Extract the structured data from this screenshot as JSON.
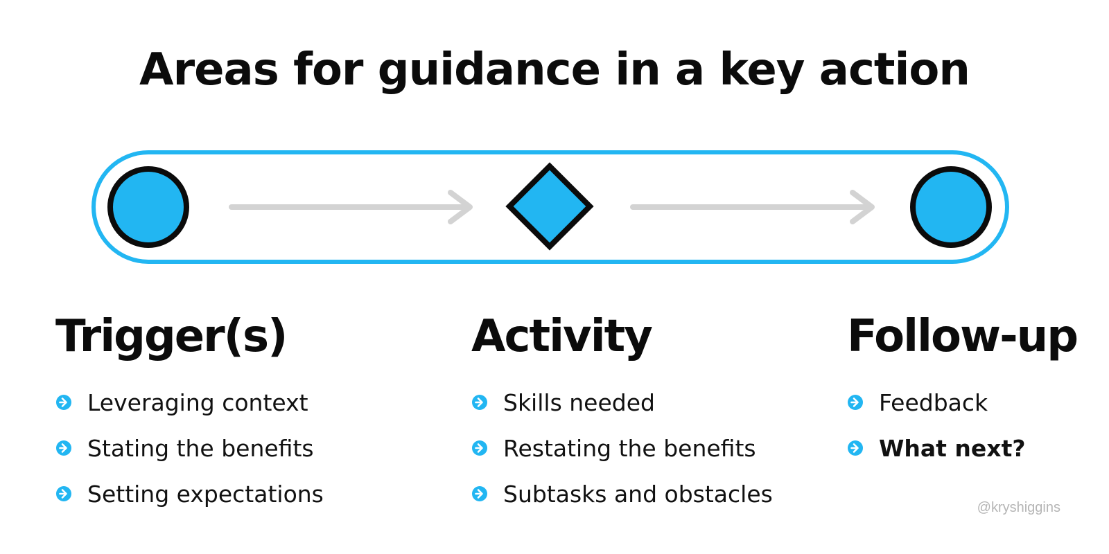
{
  "title": "Areas for guidance in a key action",
  "colors": {
    "accent": "#22b6f2",
    "outline": "#0b0b0b",
    "arrow": "#d3d3d3",
    "credit": "#b5b5b5"
  },
  "diagram": {
    "nodes": [
      {
        "shape": "circle"
      },
      {
        "shape": "diamond"
      },
      {
        "shape": "circle"
      }
    ],
    "connectors": [
      "arrow",
      "arrow"
    ]
  },
  "columns": [
    {
      "heading": "Trigger(s)",
      "items": [
        {
          "text": "Leveraging context",
          "bold": false
        },
        {
          "text": "Stating the benefits",
          "bold": false
        },
        {
          "text": "Setting expectations",
          "bold": false
        }
      ]
    },
    {
      "heading": "Activity",
      "items": [
        {
          "text": "Skills needed",
          "bold": false
        },
        {
          "text": "Restating the benefits",
          "bold": false
        },
        {
          "text": "Subtasks and obstacles",
          "bold": false
        }
      ]
    },
    {
      "heading": "Follow-up",
      "items": [
        {
          "text": "Feedback",
          "bold": false
        },
        {
          "text": "What next?",
          "bold": true
        }
      ]
    }
  ],
  "credit": "@kryshiggins"
}
